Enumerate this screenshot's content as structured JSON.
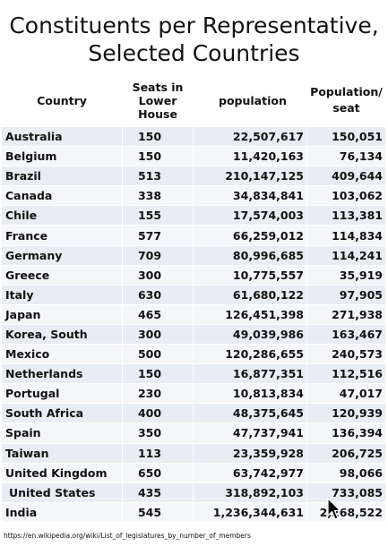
{
  "title_line1": "Constituents per Representative,",
  "title_line2": "Selected Countries",
  "headers": {
    "country": "Country",
    "seats_line1": "Seats in",
    "seats_line2": "Lower",
    "seats_line3": "House",
    "population": "population",
    "pop_seat_line1": "Population/",
    "pop_seat_line2": "seat"
  },
  "rows": [
    {
      "country": "Australia",
      "seats": "150",
      "population": "22,507,617",
      "per_seat": "150,051"
    },
    {
      "country": "Belgium",
      "seats": "150",
      "population": "11,420,163",
      "per_seat": "76,134"
    },
    {
      "country": "Brazil",
      "seats": "513",
      "population": "210,147,125",
      "per_seat": "409,644"
    },
    {
      "country": "Canada",
      "seats": "338",
      "population": "34,834,841",
      "per_seat": "103,062"
    },
    {
      "country": "Chile",
      "seats": "155",
      "population": "17,574,003",
      "per_seat": "113,381"
    },
    {
      "country": "France",
      "seats": "577",
      "population": "66,259,012",
      "per_seat": "114,834"
    },
    {
      "country": "Germany",
      "seats": "709",
      "population": "80,996,685",
      "per_seat": "114,241"
    },
    {
      "country": "Greece",
      "seats": "300",
      "population": "10,775,557",
      "per_seat": "35,919"
    },
    {
      "country": "Italy",
      "seats": "630",
      "population": "61,680,122",
      "per_seat": "97,905"
    },
    {
      "country": "Japan",
      "seats": "465",
      "population": "126,451,398",
      "per_seat": "271,938"
    },
    {
      "country": "Korea, South",
      "seats": "300",
      "population": "49,039,986",
      "per_seat": "163,467"
    },
    {
      "country": "Mexico",
      "seats": "500",
      "population": "120,286,655",
      "per_seat": "240,573"
    },
    {
      "country": "Netherlands",
      "seats": "150",
      "population": "16,877,351",
      "per_seat": "112,516"
    },
    {
      "country": "Portugal",
      "seats": "230",
      "population": "10,813,834",
      "per_seat": "47,017"
    },
    {
      "country": "South Africa",
      "seats": "400",
      "population": "48,375,645",
      "per_seat": "120,939"
    },
    {
      "country": "Spain",
      "seats": "350",
      "population": "47,737,941",
      "per_seat": "136,394"
    },
    {
      "country": "Taiwan",
      "seats": "113",
      "population": "23,359,928",
      "per_seat": "206,725"
    },
    {
      "country": "United Kingdom",
      "seats": "650",
      "population": "63,742,977",
      "per_seat": "98,066"
    },
    {
      "country": "United States",
      "seats": "435",
      "population": "318,892,103",
      "per_seat": "733,085"
    },
    {
      "country": "India",
      "seats": "545",
      "population": "1,236,344,631",
      "per_seat": "2,268,522"
    }
  ],
  "footer": "https://en.wikipedia.org/wiki/List_of_legislatures_by_number_of_members",
  "cursor_icon": "mouse-pointer-icon"
}
